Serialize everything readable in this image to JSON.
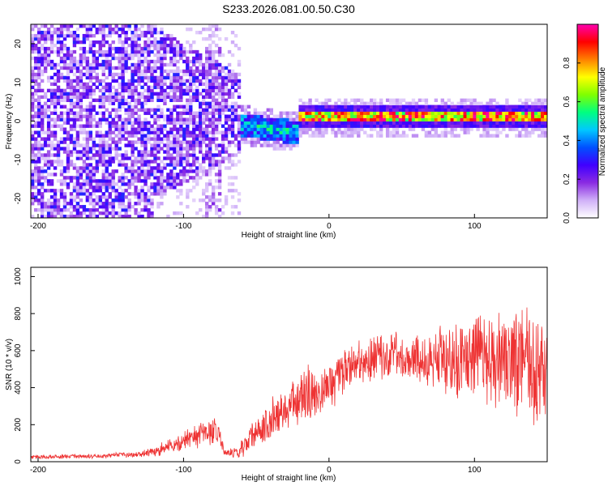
{
  "figure_title": "S233.2026.081.00.50.C30",
  "chart_data": [
    {
      "type": "heatmap",
      "title": "S233.2026.081.00.50.C30",
      "xlabel": "Height of straight line (km)",
      "ylabel": "Frequency (Hz)",
      "xlim": [
        -205,
        150
      ],
      "ylim": [
        -25,
        25
      ],
      "xticks": [
        -200,
        -100,
        0,
        100
      ],
      "yticks": [
        -20,
        -10,
        0,
        10,
        20
      ],
      "colorbar": {
        "label": "Normalized spectral amplitude",
        "range": [
          0.0,
          1.0
        ],
        "ticks": [
          0.0,
          0.2,
          0.4,
          0.6,
          0.8
        ],
        "tick_labels": [
          "0.0",
          "0.2",
          "0.4",
          "0.6",
          "0.8"
        ],
        "colormap": [
          "#ffffff",
          "#d0b0f8",
          "#8a2be2",
          "#4000ff",
          "#0050ff",
          "#00c8ff",
          "#00ff80",
          "#80ff00",
          "#ffff00",
          "#ff8000",
          "#ff0000",
          "#ff00b0"
        ]
      },
      "features": {
        "ridge_frequency_hz": 1,
        "ridge_start_km": -20,
        "ridge_end_km": 150,
        "noise_region_km": [
          -205,
          -60
        ]
      }
    },
    {
      "type": "line",
      "xlabel": "Height of straight line (km)",
      "ylabel": "SNR (10 * v/v)",
      "xlim": [
        -205,
        150
      ],
      "ylim": [
        0,
        1050
      ],
      "xticks": [
        -200,
        -100,
        0,
        100
      ],
      "yticks": [
        0,
        200,
        400,
        600,
        800,
        1000
      ],
      "color": "#ee3333",
      "series": [
        {
          "name": "SNR",
          "x": [
            -205,
            -190,
            -175,
            -160,
            -145,
            -130,
            -120,
            -110,
            -100,
            -95,
            -90,
            -85,
            -80,
            -77,
            -75,
            -72,
            -70,
            -65,
            -60,
            -55,
            -50,
            -45,
            -40,
            -35,
            -30,
            -25,
            -20,
            -15,
            -12,
            -10,
            -5,
            0,
            5,
            10,
            15,
            20,
            25,
            30,
            35,
            40,
            45,
            50,
            55,
            60,
            65,
            70,
            75,
            80,
            85,
            90,
            95,
            100,
            105,
            110,
            115,
            120,
            125,
            130,
            135,
            140,
            145,
            150
          ],
          "values": [
            25,
            25,
            28,
            30,
            35,
            40,
            55,
            80,
            110,
            125,
            135,
            150,
            165,
            170,
            130,
            60,
            45,
            50,
            70,
            110,
            160,
            200,
            230,
            260,
            290,
            320,
            330,
            360,
            380,
            350,
            380,
            420,
            440,
            480,
            510,
            535,
            550,
            570,
            575,
            580,
            575,
            570,
            565,
            560,
            555,
            560,
            565,
            570,
            575,
            575,
            570,
            565,
            560,
            550,
            545,
            540,
            545,
            550,
            555,
            545,
            535,
            520
          ],
          "spread": [
            10,
            10,
            10,
            10,
            12,
            15,
            25,
            35,
            45,
            50,
            55,
            60,
            65,
            70,
            45,
            20,
            20,
            25,
            40,
            60,
            80,
            90,
            100,
            105,
            110,
            110,
            115,
            130,
            140,
            90,
            110,
            110,
            110,
            110,
            110,
            110,
            110,
            110,
            115,
            115,
            120,
            120,
            125,
            130,
            130,
            140,
            150,
            170,
            190,
            200,
            210,
            220,
            230,
            240,
            250,
            260,
            270,
            280,
            290,
            300,
            300,
            260
          ]
        }
      ]
    }
  ]
}
